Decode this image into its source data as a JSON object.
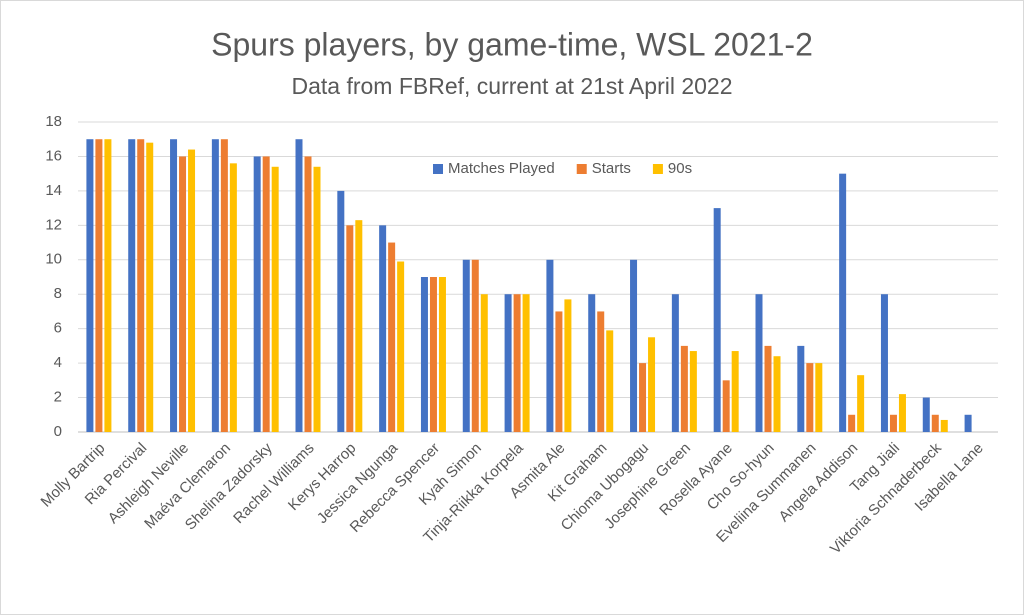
{
  "chart_data": {
    "type": "bar",
    "title": "Spurs players, by game-time, WSL 2021-2",
    "subtitle": "Data from FBRef, current at 21st April 2022",
    "categories": [
      "Molly Bartrip",
      "Ria Percival",
      "Ashleigh Neville",
      "Maéva Clemaron",
      "Shelina Zadorsky",
      "Rachel Williams",
      "Kerys Harrop",
      "Jessica Ngunga",
      "Rebecca Spencer",
      "Kyah Simon",
      "Tinja-Riikka Korpela",
      "Asmita Ale",
      "Kit Graham",
      "Chioma Ubogagu",
      "Josephine Green",
      "Rosella Ayane",
      "Cho So-hyun",
      "Eveliina Summanen",
      "Angela Addison",
      "Tang Jiali",
      "Viktoria Schnaderbeck",
      "Isabella Lane"
    ],
    "series": [
      {
        "name": "Matches Played",
        "color": "#4472c4",
        "values": [
          17,
          17,
          17,
          17,
          16,
          17,
          14,
          12,
          9,
          10,
          8,
          10,
          8,
          10,
          8,
          13,
          8,
          5,
          15,
          8,
          2,
          1
        ]
      },
      {
        "name": "Starts",
        "color": "#ed7d31",
        "values": [
          17,
          17,
          16,
          17,
          16,
          16,
          12,
          11,
          9,
          10,
          8,
          7,
          7,
          4,
          5,
          3,
          5,
          4,
          1,
          1,
          1,
          0
        ]
      },
      {
        "name": "90s",
        "color": "#ffc000",
        "values": [
          17,
          16.8,
          16.4,
          15.6,
          15.4,
          15.4,
          12.3,
          9.9,
          9,
          8,
          8,
          7.7,
          5.9,
          5.5,
          4.7,
          4.7,
          4.4,
          4,
          3.3,
          2.2,
          0.7,
          0
        ]
      }
    ],
    "ylim": [
      0,
      18
    ],
    "yticks": [
      0,
      2,
      4,
      6,
      8,
      10,
      12,
      14,
      16,
      18
    ],
    "grid": true,
    "legend": "top"
  }
}
